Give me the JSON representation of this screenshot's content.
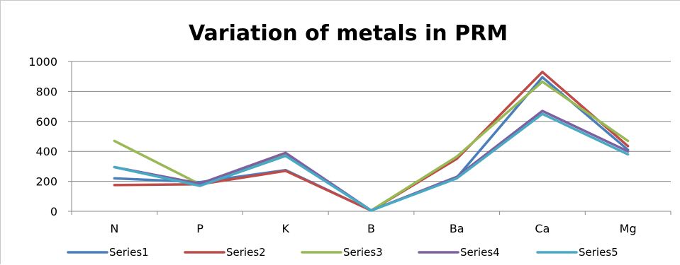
{
  "chart_data": {
    "type": "line",
    "title": "Variation of metals in PRM",
    "xlabel": "",
    "ylabel": "",
    "categories": [
      "N",
      "P",
      "K",
      "B",
      "Ba",
      "Ca",
      "Mg"
    ],
    "ylim": [
      0,
      1000
    ],
    "yticks": [
      0,
      200,
      400,
      600,
      800,
      1000
    ],
    "grid": true,
    "legend_position": "bottom",
    "series": [
      {
        "name": "Series1",
        "color": "#4A7EBB",
        "values": [
          220,
          195,
          275,
          5,
          225,
          895,
          410
        ]
      },
      {
        "name": "Series2",
        "color": "#BE4B48",
        "values": [
          175,
          180,
          270,
          5,
          350,
          930,
          435
        ]
      },
      {
        "name": "Series3",
        "color": "#98B954",
        "values": [
          470,
          180,
          380,
          5,
          365,
          865,
          470
        ]
      },
      {
        "name": "Series4",
        "color": "#7D60A0",
        "values": [
          295,
          185,
          390,
          5,
          230,
          670,
          400
        ]
      },
      {
        "name": "Series5",
        "color": "#46AAC5",
        "values": [
          295,
          170,
          370,
          5,
          220,
          650,
          380
        ]
      }
    ]
  }
}
